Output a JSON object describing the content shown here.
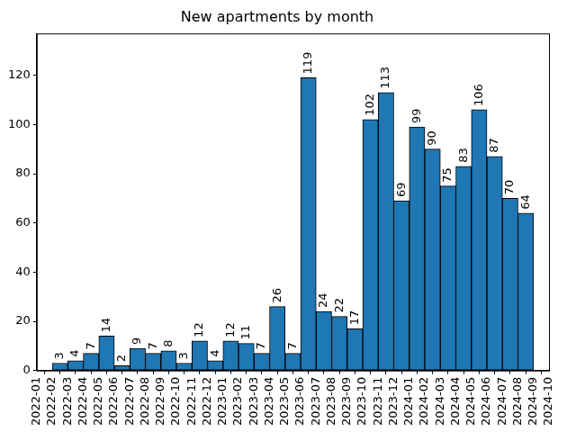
{
  "chart_data": {
    "type": "bar",
    "title": "New apartments by month",
    "bins": [
      "2022-02",
      "2022-03",
      "2022-04",
      "2022-05",
      "2022-06",
      "2022-07",
      "2022-08",
      "2022-09",
      "2022-10",
      "2022-11",
      "2022-12",
      "2023-01",
      "2023-02",
      "2023-03",
      "2023-04",
      "2023-05",
      "2023-06",
      "2023-07",
      "2023-08",
      "2023-09",
      "2023-10",
      "2023-11",
      "2023-12",
      "2024-01",
      "2024-02",
      "2024-03",
      "2024-04",
      "2024-05",
      "2024-06",
      "2024-07",
      "2024-08",
      "2024-09"
    ],
    "values": [
      3,
      4,
      7,
      14,
      2,
      9,
      7,
      8,
      3,
      12,
      4,
      12,
      11,
      7,
      26,
      7,
      119,
      24,
      22,
      17,
      102,
      113,
      69,
      99,
      90,
      75,
      83,
      106,
      87,
      70,
      64
    ],
    "color": "#1f77b4",
    "xlim": [
      "2022-01",
      "2024-10"
    ],
    "xticks": [
      "2022-01",
      "2022-02",
      "2022-03",
      "2022-04",
      "2022-05",
      "2022-06",
      "2022-07",
      "2022-08",
      "2022-09",
      "2022-10",
      "2022-11",
      "2022-12",
      "2023-01",
      "2023-02",
      "2023-03",
      "2023-04",
      "2023-05",
      "2023-06",
      "2023-07",
      "2023-08",
      "2023-09",
      "2023-10",
      "2023-11",
      "2023-12",
      "2024-01",
      "2024-02",
      "2024-03",
      "2024-04",
      "2024-05",
      "2024-06",
      "2024-07",
      "2024-08",
      "2024-09",
      "2024-10"
    ],
    "ylim": [
      0,
      137
    ],
    "yticks": [
      0,
      20,
      40,
      60,
      80,
      100,
      120
    ],
    "grid": false,
    "data_labels": true
  }
}
